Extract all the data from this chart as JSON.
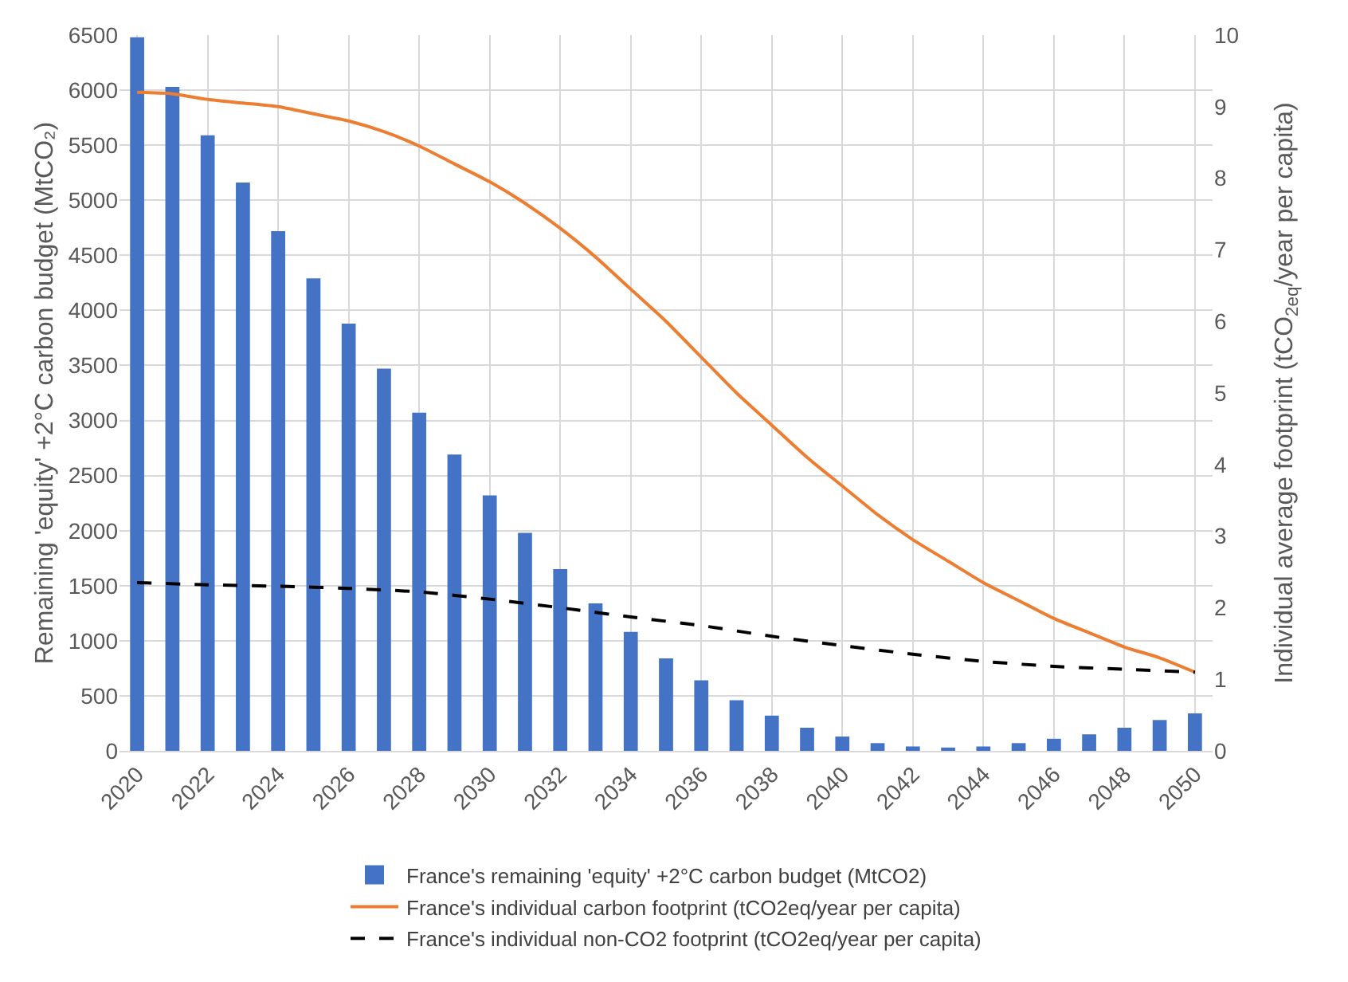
{
  "chart_data": {
    "type": "bar",
    "ylabel": "Remaining 'equity' +2°C carbon budget (MtCO₂)",
    "y2label": "Individual average footprint (tCO$_{2eq}$/year per capita)",
    "x": [
      2020,
      2021,
      2022,
      2023,
      2024,
      2025,
      2026,
      2027,
      2028,
      2029,
      2030,
      2031,
      2032,
      2033,
      2034,
      2035,
      2036,
      2037,
      2038,
      2039,
      2040,
      2041,
      2042,
      2043,
      2044,
      2045,
      2046,
      2047,
      2048,
      2049,
      2050
    ],
    "series": [
      {
        "name": "France's remaining 'equity' +2°C carbon budget (MtCO2)",
        "color": "#4472c4",
        "values": [
          6480,
          6030,
          5590,
          5160,
          4720,
          4290,
          3880,
          3470,
          3070,
          2690,
          2320,
          1980,
          1650,
          1340,
          1080,
          840,
          640,
          460,
          320,
          210,
          130,
          70,
          40,
          30,
          40,
          70,
          110,
          150,
          210,
          280,
          340
        ]
      },
      {
        "name": "France's individual carbon footprint (tCO2eq/year per capita)",
        "type": "line",
        "axis": "y2",
        "color": "#ed7d31",
        "line_style": "solid",
        "values": [
          9.2,
          9.18,
          9.1,
          9.05,
          9.0,
          8.9,
          8.8,
          8.65,
          8.45,
          8.2,
          7.95,
          7.65,
          7.3,
          6.9,
          6.45,
          6.0,
          5.5,
          5.0,
          4.55,
          4.1,
          3.7,
          3.3,
          2.95,
          2.65,
          2.35,
          2.1,
          1.85,
          1.65,
          1.45,
          1.3,
          1.1
        ]
      },
      {
        "name": "France's individual non-CO2 footprint (tCO2eq/year per capita)",
        "type": "line",
        "axis": "y2",
        "color": "#000000",
        "line_style": "dashed",
        "x": [
          2020,
          2022,
          2024,
          2026,
          2028,
          2030,
          2032,
          2034,
          2036,
          2038,
          2040,
          2042,
          2044,
          2046,
          2048,
          2050
        ],
        "values": [
          2.35,
          2.32,
          2.3,
          2.27,
          2.22,
          2.12,
          2.0,
          1.87,
          1.75,
          1.6,
          1.47,
          1.35,
          1.25,
          1.18,
          1.14,
          1.1
        ]
      }
    ],
    "xlim": [
      2019.5,
      2050.5
    ],
    "xticks": [
      2020,
      2022,
      2024,
      2026,
      2028,
      2030,
      2032,
      2034,
      2036,
      2038,
      2040,
      2042,
      2044,
      2046,
      2048,
      2050
    ],
    "ylim": [
      0,
      6500
    ],
    "yticks": [
      0,
      500,
      1000,
      1500,
      2000,
      2500,
      3000,
      3500,
      4000,
      4500,
      5000,
      5500,
      6000,
      6500
    ],
    "y2lim": [
      0,
      10
    ],
    "y2ticks": [
      0,
      1,
      2,
      3,
      4,
      5,
      6,
      7,
      8,
      9,
      10
    ],
    "grid": true,
    "legend": "bottom",
    "marker": "none"
  }
}
